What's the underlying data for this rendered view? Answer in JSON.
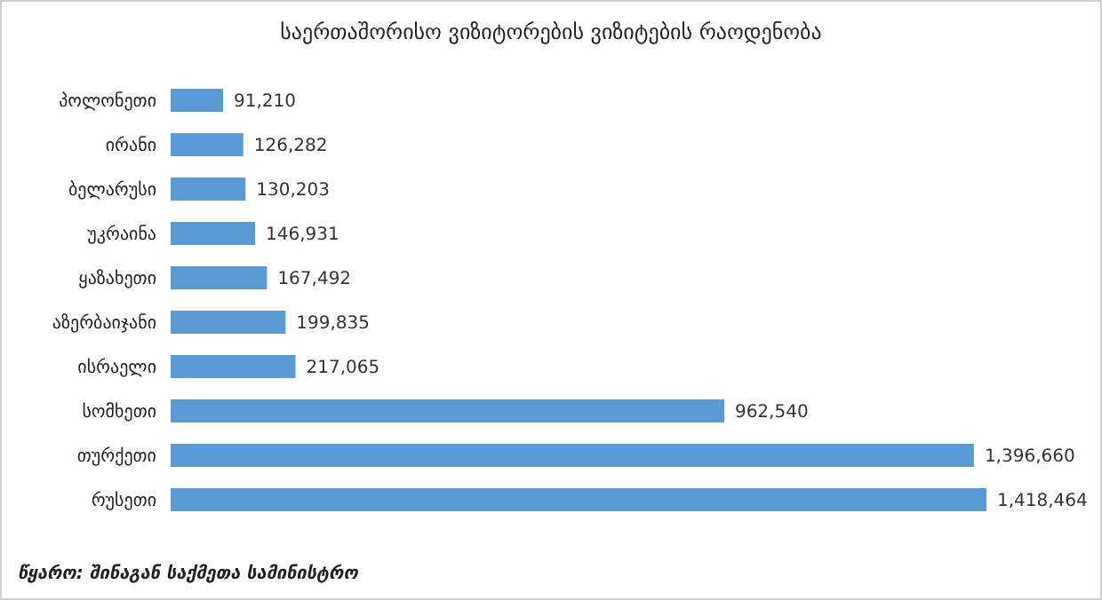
{
  "chart_data": {
    "type": "bar",
    "orientation": "horizontal",
    "title": "საერთაშორისო ვიზიტორების ვიზიტების რაოდენობა",
    "categories": [
      "პოლონეთი",
      "ირანი",
      "ბელარუსი",
      "უკრაინა",
      "ყაზახეთი",
      "აზერბაიჯანი",
      "ისრაელი",
      "სომხეთი",
      "თურქეთი",
      "რუსეთი"
    ],
    "values": [
      91210,
      126282,
      130203,
      146931,
      167492,
      199835,
      217065,
      962540,
      1396660,
      1418464
    ],
    "value_labels": [
      "91,210",
      "126,282",
      "130,203",
      "146,931",
      "167,492",
      "199,835",
      "217,065",
      "962,540",
      "1,396,660",
      "1,418,464"
    ],
    "color": "#5b9bd5",
    "tick_labels": "y",
    "annotations": [
      "წყარო: შინაგან საქმეთა სამინისტრო"
    ]
  }
}
